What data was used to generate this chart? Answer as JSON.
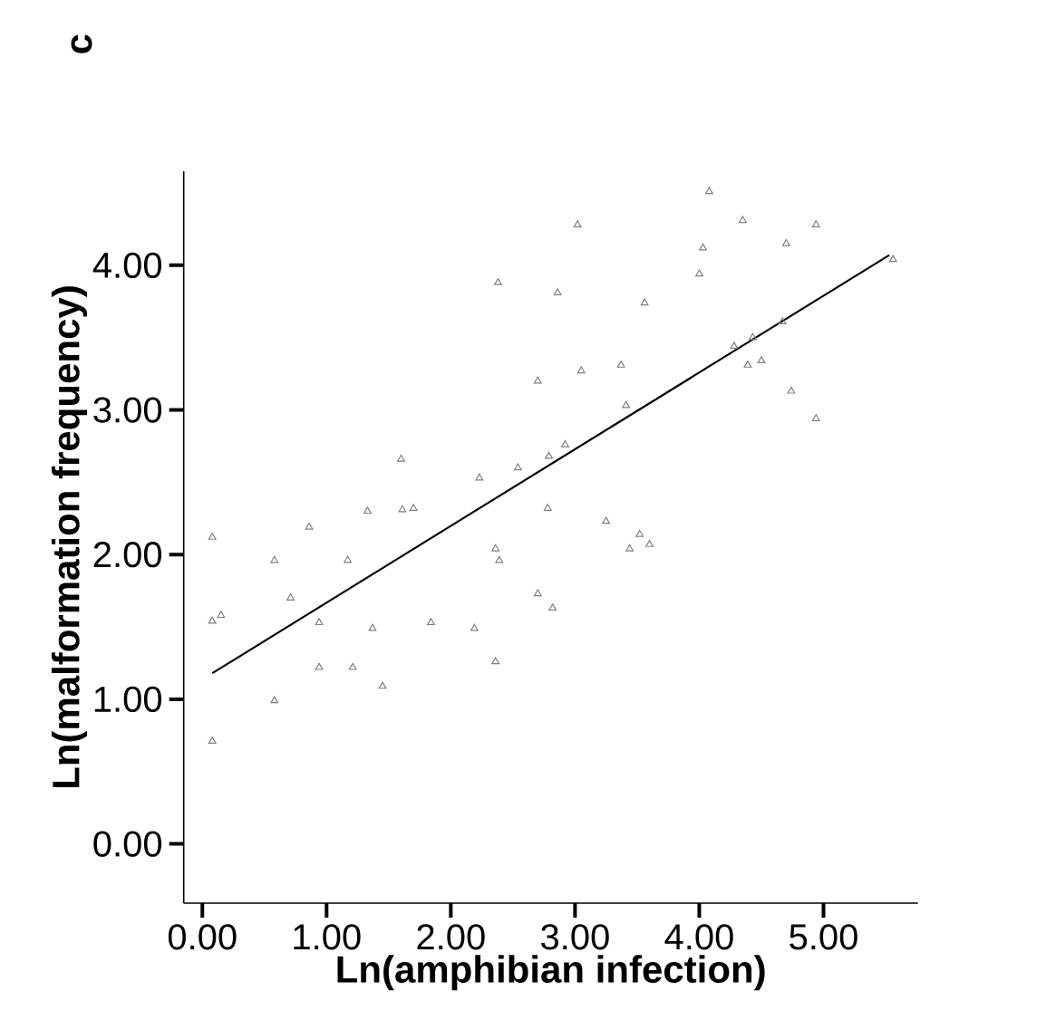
{
  "chart_data": {
    "type": "scatter",
    "title": "c",
    "xlabel": "Ln(amphibian infection)",
    "ylabel": "Ln(malformation frequency)",
    "xlim": [
      -0.15,
      5.76
    ],
    "ylim": [
      -0.41,
      4.65
    ],
    "xticks": [
      {
        "value": 0,
        "label": "0.00"
      },
      {
        "value": 1,
        "label": "1.00"
      },
      {
        "value": 2,
        "label": "2.00"
      },
      {
        "value": 3,
        "label": "3.00"
      },
      {
        "value": 4,
        "label": "4.00"
      },
      {
        "value": 5,
        "label": "5.00"
      }
    ],
    "yticks": [
      {
        "value": 0,
        "label": "0.00"
      },
      {
        "value": 1,
        "label": "1.00"
      },
      {
        "value": 2,
        "label": "2.00"
      },
      {
        "value": 3,
        "label": "3.00"
      },
      {
        "value": 4,
        "label": "4.00"
      }
    ],
    "grid": false,
    "marker": "triangle",
    "series": [
      {
        "type": "scatter",
        "color": "#808080",
        "x": [
          0.08,
          0.08,
          0.15,
          0.08,
          0.58,
          0.58,
          0.71,
          0.86,
          0.94,
          0.94,
          1.17,
          1.21,
          1.33,
          1.37,
          1.45,
          1.6,
          1.61,
          1.7,
          1.84,
          2.19,
          2.23,
          2.36,
          2.36,
          2.39,
          2.38,
          2.54,
          2.7,
          2.7,
          2.78,
          2.79,
          2.82,
          2.86,
          2.92,
          3.02,
          3.05,
          3.25,
          3.37,
          3.41,
          3.44,
          3.52,
          3.6,
          3.56,
          4.0,
          4.03,
          4.08,
          4.28,
          4.35,
          4.39,
          4.43,
          4.5,
          4.67,
          4.7,
          4.74,
          4.94,
          4.94,
          5.56
        ],
        "values": [
          2.12,
          1.54,
          1.58,
          0.71,
          1.96,
          0.99,
          1.7,
          2.19,
          1.53,
          1.22,
          1.96,
          1.22,
          2.3,
          1.49,
          1.09,
          2.66,
          2.31,
          2.32,
          1.53,
          1.49,
          2.53,
          1.26,
          2.04,
          1.96,
          3.88,
          2.6,
          3.2,
          1.73,
          2.32,
          2.68,
          1.63,
          3.81,
          2.76,
          4.28,
          3.27,
          2.23,
          3.31,
          3.03,
          2.04,
          2.14,
          2.07,
          3.74,
          3.94,
          4.12,
          4.51,
          3.44,
          4.31,
          3.31,
          3.5,
          3.34,
          3.61,
          4.15,
          3.13,
          4.28,
          2.94,
          4.04
        ]
      },
      {
        "type": "line",
        "color": "#000000",
        "marker": "none",
        "x": [
          0.08,
          5.53
        ],
        "values": [
          1.18,
          4.07
        ]
      }
    ]
  }
}
